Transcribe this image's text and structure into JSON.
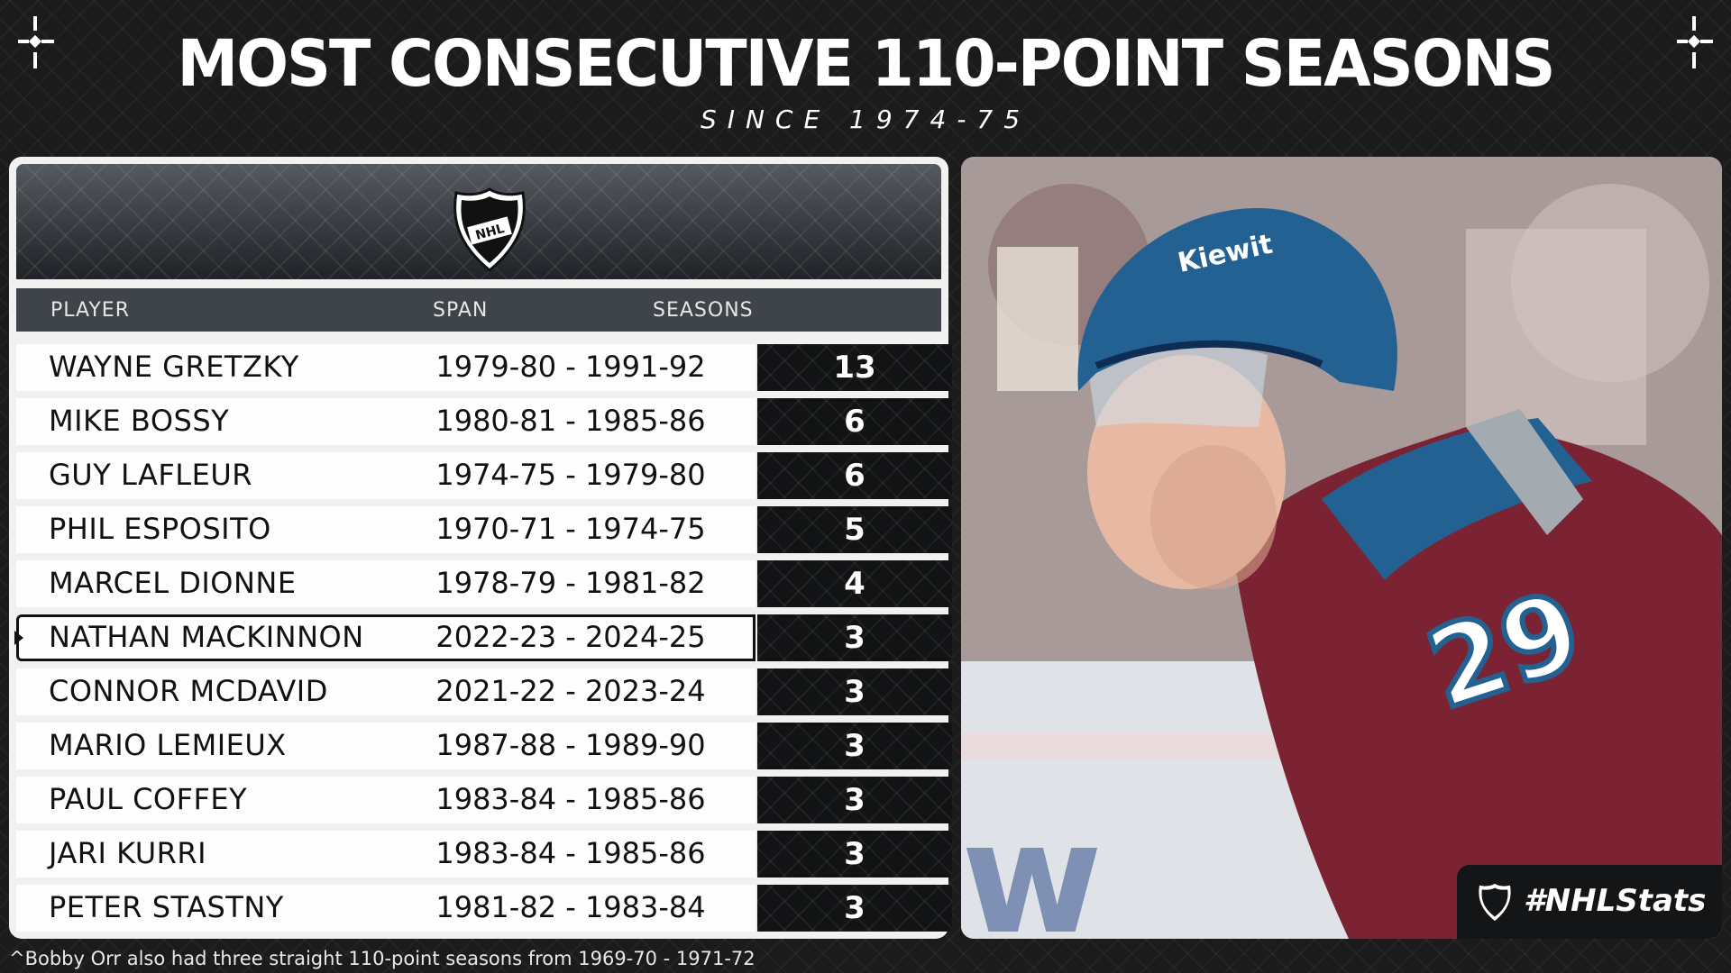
{
  "header": {
    "title": "MOST CONSECUTIVE 110-POINT SEASONS",
    "subtitle": "SINCE 1974-75"
  },
  "table": {
    "columns": [
      "PLAYER",
      "SPAN",
      "SEASONS"
    ],
    "rows": [
      {
        "player": "WAYNE GRETZKY",
        "span": "1979-80 - 1991-92",
        "seasons": "13"
      },
      {
        "player": "MIKE BOSSY",
        "span": "1980-81 - 1985-86",
        "seasons": "6"
      },
      {
        "player": "GUY LAFLEUR",
        "span": "1974-75 - 1979-80",
        "seasons": "6"
      },
      {
        "player": "PHIL ESPOSITO",
        "span": "1970-71 - 1974-75",
        "seasons": "5"
      },
      {
        "player": "MARCEL DIONNE",
        "span": "1978-79 - 1981-82",
        "seasons": "4"
      },
      {
        "player": "NATHAN MACKINNON",
        "span": "2022-23 - 2024-25",
        "seasons": "3",
        "highlight": true
      },
      {
        "player": "CONNOR MCDAVID",
        "span": "2021-22 - 2023-24",
        "seasons": "3"
      },
      {
        "player": "MARIO LEMIEUX",
        "span": "1987-88 - 1989-90",
        "seasons": "3"
      },
      {
        "player": "PAUL COFFEY",
        "span": "1983-84 - 1985-86",
        "seasons": "3"
      },
      {
        "player": "JARI KURRI",
        "span": "1983-84 - 1985-86",
        "seasons": "3"
      },
      {
        "player": "PETER STASTNY",
        "span": "1981-82 - 1983-84",
        "seasons": "3"
      }
    ]
  },
  "photo": {
    "helmet_text": "Kiewit",
    "jersey_number": "29"
  },
  "branding": {
    "hashtag": "#NHLStats",
    "logo_text": "NHL"
  },
  "footnote": "^Bobby Orr also had three straight 110-point seasons from 1969-70 - 1971-72",
  "colors": {
    "background": "#1b1b1c",
    "header_band": "#3e444a",
    "seasons_cell": "#121314",
    "row_bg": "#fdfdfd"
  }
}
